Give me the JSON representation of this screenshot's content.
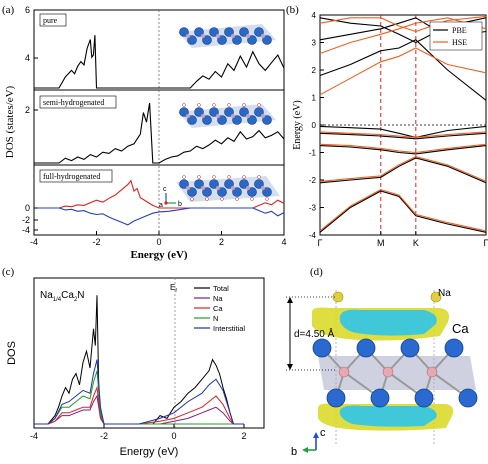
{
  "chart_data": [
    {
      "id": "a",
      "type": "line",
      "panel_label": "(a)",
      "xlabel": "Energy (eV)",
      "ylabel": "DOS (states/eV)",
      "xlim": [
        -4,
        4
      ],
      "ylim": [
        -5,
        6
      ],
      "xticks": [
        "-4",
        "-2",
        "0",
        "2",
        "4"
      ],
      "yticks": [
        "-4",
        "-2",
        "0",
        "2",
        "4",
        "6"
      ],
      "legend_labels": [
        "pure",
        "semi-hydrogenated",
        "full-hydrogenated"
      ],
      "axis_labels_inset": {
        "c": "c",
        "a": "a",
        "b": "b"
      },
      "subpanels": [
        {
          "name": "pure",
          "color": "#000000",
          "x": [
            -4,
            -3.2,
            -3.0,
            -2.8,
            -2.7,
            -2.6,
            -2.5,
            -2.4,
            -2.3,
            -2.2,
            -2.15,
            -2.1,
            -2.05,
            -2.0,
            -1.9,
            -1.7,
            -1.0,
            -0.5,
            0,
            0.5,
            1.0,
            1.2,
            1.4,
            1.6,
            1.8,
            2.0,
            2.2,
            2.4,
            2.6,
            2.8,
            3.0,
            3.2,
            3.4,
            3.6,
            3.8,
            4.0
          ],
          "y": [
            0,
            0,
            1,
            1.6,
            1.3,
            2.0,
            2.4,
            2.1,
            3.6,
            4.4,
            2.8,
            3.0,
            4.8,
            0,
            0,
            0,
            0,
            0,
            0,
            0,
            0,
            0.6,
            1.1,
            0.8,
            1.5,
            1.0,
            2.2,
            1.6,
            2.9,
            1.9,
            3.3,
            2.2,
            1.6,
            2.3,
            3.0,
            1.8
          ]
        },
        {
          "name": "semi-hydrogenated",
          "color": "#000000",
          "x": [
            -4,
            -3.2,
            -3.0,
            -2.8,
            -2.6,
            -2.4,
            -2.2,
            -2.0,
            -1.8,
            -1.6,
            -1.4,
            -1.2,
            -1.0,
            -0.8,
            -0.6,
            -0.5,
            -0.4,
            -0.3,
            -0.2,
            0,
            0.2,
            0.4,
            0.6,
            0.8,
            1.0,
            1.2,
            1.4,
            1.6,
            1.8,
            2.0,
            2.2,
            2.4,
            2.6,
            2.8,
            3.0,
            3.2,
            3.4,
            3.6,
            3.8,
            4.0
          ],
          "y": [
            0,
            0,
            0.4,
            0.2,
            0.5,
            0.3,
            0.7,
            0.5,
            0.9,
            0.8,
            1.2,
            1.0,
            1.4,
            1.6,
            2.4,
            4.2,
            3.4,
            5.0,
            0,
            0,
            0.3,
            0.5,
            0.6,
            0.9,
            1.0,
            1.4,
            1.2,
            1.5,
            1.9,
            1.6,
            2.1,
            1.8,
            2.6,
            2.0,
            2.2,
            2.7,
            2.1,
            2.3,
            2.6,
            2.0
          ]
        },
        {
          "name": "full-hydrogenated spin up",
          "color": "#e02020",
          "x": [
            -4,
            -3.2,
            -3.0,
            -2.8,
            -2.6,
            -2.4,
            -2.2,
            -2.0,
            -1.8,
            -1.6,
            -1.4,
            -1.2,
            -1.0,
            -0.9,
            -0.8,
            -0.7,
            -0.6,
            -0.4,
            -0.2,
            0,
            0.3,
            0.6,
            1.0,
            1.5,
            2.0,
            2.5,
            3.0,
            3.2,
            3.4,
            3.6,
            3.8,
            4.0
          ],
          "y": [
            0,
            0,
            0.3,
            0.2,
            0.5,
            0.4,
            0.8,
            1.2,
            0.9,
            1.5,
            2.0,
            2.8,
            3.6,
            4.2,
            2.6,
            3.0,
            1.6,
            1.0,
            0.4,
            0,
            0,
            0,
            0,
            0,
            0,
            0,
            0,
            0.4,
            0.8,
            0.5,
            1.2,
            0.7
          ]
        },
        {
          "name": "full-hydrogenated spin down",
          "color": "#2040c0",
          "x": [
            -4,
            -3.2,
            -3.0,
            -2.8,
            -2.6,
            -2.4,
            -2.2,
            -2.0,
            -1.8,
            -1.6,
            -1.4,
            -1.2,
            -1.0,
            -0.8,
            -0.6,
            -0.4,
            -0.2,
            0,
            0.3,
            0.6,
            1.0,
            1.5,
            2.0,
            2.5,
            3.0,
            3.2,
            3.4,
            3.6,
            3.8,
            4.0
          ],
          "y": [
            0,
            0,
            -0.3,
            -0.2,
            -0.5,
            -0.4,
            -0.8,
            -1.0,
            -0.9,
            -1.4,
            -1.8,
            -2.2,
            -2.6,
            -2.0,
            -1.6,
            -1.2,
            -0.8,
            -0.6,
            -0.5,
            -0.3,
            0,
            0,
            0,
            0,
            0,
            -0.4,
            -0.8,
            -0.5,
            -1.2,
            -0.7
          ]
        }
      ]
    },
    {
      "id": "b",
      "type": "line",
      "panel_label": "(b)",
      "ylabel": "Energy (eV)",
      "ylim": [
        -4,
        4
      ],
      "yticks": [
        "-4",
        "-3",
        "-2",
        "-1",
        "0",
        "1",
        "2",
        "3",
        "4"
      ],
      "xticks": [
        "Γ",
        "M",
        "K",
        "Γ"
      ],
      "xtick_positions": [
        0,
        1,
        1.577,
        2.732
      ],
      "legend": [
        {
          "name": "PBE",
          "color": "#000000"
        },
        {
          "name": "HSE",
          "color": "#f06020"
        }
      ]
    },
    {
      "id": "c",
      "type": "line",
      "panel_label": "(c)",
      "title": "Na",
      "title_sub1": "1/4",
      "title_mid": "Ca",
      "title_sub2": "2",
      "title_end": "N",
      "fermi_label": "E",
      "fermi_sub": "f",
      "xlabel": "Energy (eV)",
      "ylabel": "DOS",
      "xlim": [
        -4,
        2
      ],
      "xticks": [
        "-4",
        "-2",
        "0",
        "2"
      ],
      "series": [
        {
          "name": "Total",
          "color": "#000000",
          "x": [
            -4,
            -3.6,
            -3.4,
            -3.3,
            -3.2,
            -3.1,
            -3.0,
            -2.9,
            -2.8,
            -2.7,
            -2.6,
            -2.5,
            -2.4,
            -2.3,
            -2.25,
            -2.2,
            -2.15,
            -2.1,
            -2.0,
            -1.8,
            -1.0,
            -0.6,
            -0.4,
            -0.2,
            0,
            0.2,
            0.4,
            0.6,
            0.8,
            1.0,
            1.1,
            1.2,
            1.3,
            1.4,
            1.5,
            1.6,
            1.7,
            2.0
          ],
          "y": [
            0,
            0,
            0.3,
            0.6,
            1.0,
            1.3,
            1.1,
            1.6,
            1.8,
            1.4,
            2.2,
            2.6,
            2.0,
            3.4,
            2.8,
            4.6,
            1.2,
            0.4,
            0,
            0,
            0,
            0,
            0.3,
            0.2,
            0.6,
            0.8,
            1.1,
            1.3,
            1.6,
            1.9,
            2.3,
            2.1,
            1.8,
            1.3,
            0.9,
            0.4,
            0,
            0
          ]
        },
        {
          "name": "Na",
          "color": "#802080",
          "x": [
            -4,
            -3.6,
            -3.4,
            -3.2,
            -3.0,
            -2.8,
            -2.6,
            -2.4,
            -2.3,
            -2.2,
            -2.1,
            -2.0,
            -1.0,
            -0.4,
            0,
            0.4,
            0.8,
            1.0,
            1.2,
            1.4,
            1.6,
            1.7,
            2.0
          ],
          "y": [
            0,
            0,
            0.1,
            0.3,
            0.3,
            0.4,
            0.5,
            0.5,
            0.8,
            1.0,
            0.2,
            0,
            0,
            0,
            0.1,
            0.2,
            0.4,
            0.5,
            0.6,
            0.4,
            0.1,
            0,
            0
          ]
        },
        {
          "name": "Ca",
          "color": "#e02020",
          "x": [
            -4,
            -3.6,
            -3.4,
            -3.2,
            -3.0,
            -2.8,
            -2.6,
            -2.4,
            -2.3,
            -2.2,
            -2.1,
            -2.0,
            -1.0,
            -0.4,
            0,
            0.4,
            0.8,
            1.0,
            1.2,
            1.4,
            1.6,
            1.7,
            2.0
          ],
          "y": [
            0,
            0,
            0.1,
            0.4,
            0.4,
            0.5,
            0.6,
            0.6,
            1.0,
            1.3,
            0.3,
            0,
            0,
            0.1,
            0.2,
            0.4,
            0.6,
            0.8,
            1.0,
            0.7,
            0.2,
            0,
            0
          ]
        },
        {
          "name": "N",
          "color": "#20a020",
          "x": [
            -4,
            -3.6,
            -3.4,
            -3.2,
            -3.0,
            -2.8,
            -2.6,
            -2.4,
            -2.3,
            -2.2,
            -2.1,
            -2.0,
            -1.0,
            0,
            2.0
          ],
          "y": [
            0,
            0,
            0.2,
            0.6,
            0.6,
            0.8,
            1.0,
            0.9,
            1.5,
            1.9,
            0.4,
            0,
            0,
            0,
            0
          ]
        },
        {
          "name": "Interstitial",
          "color": "#2030b0",
          "x": [
            -4,
            -3.6,
            -3.4,
            -3.2,
            -3.0,
            -2.8,
            -2.6,
            -2.4,
            -2.3,
            -2.2,
            -2.1,
            -2.0,
            -1.0,
            -0.4,
            0,
            0.4,
            0.8,
            1.0,
            1.2,
            1.4,
            1.6,
            1.7,
            2.0
          ],
          "y": [
            0,
            0,
            0.2,
            0.7,
            0.8,
            1.0,
            1.2,
            1.1,
            1.8,
            2.3,
            0.6,
            0,
            0,
            0.2,
            0.4,
            0.8,
            1.1,
            1.4,
            1.6,
            1.2,
            0.4,
            0,
            0
          ]
        }
      ]
    },
    {
      "id": "d",
      "type": "diagram",
      "panel_label": "(d)",
      "labels": {
        "na": "Na",
        "ca": "Ca",
        "distance": "d=4.50 Å",
        "c": "c",
        "b": "b"
      }
    }
  ]
}
